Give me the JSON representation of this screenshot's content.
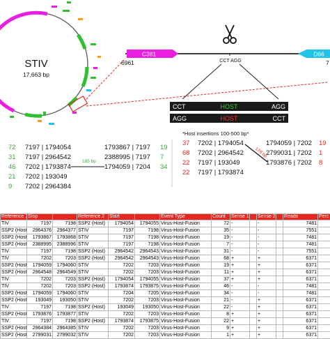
{
  "genome": {
    "name": "STIV",
    "size": "17,663 bp",
    "pos_label": "6961"
  },
  "genes": [
    {
      "label": "C381",
      "color": "#e91ee0"
    },
    {
      "label": "D66",
      "color": "#23c2e8"
    }
  ],
  "right_edge_label": "7",
  "cut_site": "CCT AGG",
  "junction_top": {
    "left": "CCT",
    "mid": "HOST",
    "right": "AGG",
    "mid_color": "#30d030"
  },
  "junction_bottom": {
    "left": "AGG",
    "mid": "HOST",
    "right": "CCT",
    "mid_color": "#ff3030"
  },
  "host_note": "*Host insertions 100-500 bp*",
  "left_counts": [
    {
      "count": "72",
      "coords": "7197 | 1794054",
      "color": "#3aa63a"
    },
    {
      "count": "31",
      "coords": "7197 | 2964542",
      "color": "#3aa63a"
    },
    {
      "count": "46",
      "coords": "7202 | 1793874",
      "color": "#3aa63a"
    },
    {
      "count": "21",
      "coords": "7202 | 193049",
      "color": "#3aa63a"
    },
    {
      "count": "9",
      "coords": "7202 | 2964384",
      "color": "#3aa63a"
    }
  ],
  "left_right_col": [
    {
      "coords": "1793867 | 7197",
      "count": "19"
    },
    {
      "coords": "2388995 | 7197",
      "count": "7"
    },
    {
      "coords": "1794059 | 7204",
      "count": "34"
    }
  ],
  "left_bp": "185 bp",
  "right_counts": [
    {
      "count": "37",
      "coords": "7202 | 1794054",
      "color": "#e8251e"
    },
    {
      "count": "68",
      "coords": "7202 | 2964542",
      "color": "#e8251e"
    },
    {
      "count": "22",
      "coords": "7197 | 193049",
      "color": "#e8251e"
    },
    {
      "count": "22",
      "coords": "7197 | 1793874",
      "color": "#e8251e"
    }
  ],
  "right_right_col": [
    {
      "coords": "1794059 | 7202",
      "count": "19"
    },
    {
      "coords": "2799031 | 7202",
      "count": "1"
    },
    {
      "coords": "1793876 | 7202",
      "count": "8"
    }
  ],
  "right_bp": "178 bp",
  "table": {
    "headers": [
      "Reference 1",
      "Stop",
      "",
      "Reference 2",
      "Start",
      "",
      "Event Type",
      "Count",
      "Sense 1",
      "",
      "Sense 2",
      "",
      "Reads",
      "Perc"
    ],
    "rows": [
      [
        "TIV",
        "7197",
        "7198",
        "SSP2 (Host)",
        "1794054",
        "1794055",
        "Virus-Host-Fusion",
        "72",
        "-",
        "",
        "-",
        "",
        "7481",
        ""
      ],
      [
        "SSP2 (Host)",
        "2964376",
        "2964377",
        "STIV",
        "7197",
        "7198",
        "Virus-Host-Fusion",
        "35",
        "-",
        "",
        "-",
        "",
        "7551",
        ""
      ],
      [
        "SSP2 (Host)",
        "1793867",
        "1793868",
        "STIV",
        "7197",
        "7198",
        "Virus-Host-Fusion",
        "19",
        "-",
        "",
        "-",
        "",
        "7481",
        ""
      ],
      [
        "SSP2 (Host)",
        "2388995",
        "2388996",
        "STIV",
        "7197",
        "7198",
        "Virus-Host-Fusion",
        "7",
        "-",
        "",
        "-",
        "",
        "7481",
        ""
      ],
      [
        "TIV",
        "7197",
        "7198",
        "SSP2 (Host)",
        "2964542",
        "2964543",
        "Virus-Host-Fusion",
        "31",
        "-",
        "",
        "-",
        "",
        "7551",
        ""
      ],
      [
        "TIV",
        "7202",
        "7203",
        "SSP2 (Host)",
        "2964542",
        "2964543",
        "Virus-Host-Fusion",
        "68",
        "+",
        "",
        "+",
        "",
        "6371",
        ""
      ],
      [
        "SSP2 (Host)",
        "1794059",
        "1794060",
        "STIV",
        "7202",
        "7203",
        "Virus-Host-Fusion",
        "19",
        "+",
        "",
        "+",
        "",
        "6371",
        ""
      ],
      [
        "SSP2 (Host)",
        "2964548",
        "2964549",
        "STIV",
        "7202",
        "7203",
        "Virus-Host-Fusion",
        "11",
        "+",
        "",
        "+",
        "",
        "6371",
        ""
      ],
      [
        "TIV",
        "7202",
        "7203",
        "SSP2 (Host)",
        "1794054",
        "1794055",
        "Virus-Host-Fusion",
        "37",
        "+",
        "",
        "+",
        "",
        "6371",
        ""
      ],
      [
        "TIV",
        "7202",
        "7203",
        "SSP2 (Host)",
        "1793874",
        "1793875",
        "Virus-Host-Fusion",
        "46",
        "-",
        "",
        "-",
        "",
        "7481",
        ""
      ],
      [
        "SSP2 (Host)",
        "1794059",
        "1794060",
        "STIV",
        "7204",
        "7205",
        "Virus-Host-Fusion",
        "34",
        "-",
        "",
        "-",
        "",
        "7481",
        ""
      ],
      [
        "SSP2 (Host)",
        "193049",
        "193050",
        "STIV",
        "7202",
        "7203",
        "Virus-Host-Fusion",
        "21",
        "-",
        "",
        "+",
        "",
        "6371",
        ""
      ],
      [
        "TIV",
        "7197",
        "7198",
        "SSP2 (Host)",
        "193049",
        "193050",
        "Virus-Host-Fusion",
        "22",
        "-",
        "",
        "+",
        "",
        "6371",
        ""
      ],
      [
        "SSP2 (Host)",
        "1793876",
        "1793877",
        "STIV",
        "7202",
        "7203",
        "Virus-Host-Fusion",
        "8",
        "+",
        "",
        "+",
        "",
        "6371",
        ""
      ],
      [
        "TIV",
        "7197",
        "7198",
        "SSP2 (Host)",
        "1793874",
        "1793875",
        "Virus-Host-Fusion",
        "22",
        "+",
        "",
        "+",
        "",
        "6371",
        ""
      ],
      [
        "SSP2 (Host)",
        "2964384",
        "2964385",
        "STIV",
        "7202",
        "7203",
        "Virus-Host-Fusion",
        "9",
        "+",
        "",
        "+",
        "",
        "6371",
        ""
      ],
      [
        "SSP2 (Host)",
        "2799031",
        "2799032",
        "STIV",
        "7202",
        "7203",
        "Virus-Host-Fusion",
        "1",
        "+",
        "",
        "+",
        "",
        "6371",
        ""
      ]
    ]
  },
  "colors": {
    "magenta": "#e91ee0",
    "green": "#2fc02f",
    "cyan": "#23c2e8",
    "orange": "#f59a23",
    "red": "#e8251e",
    "dark": "#1a1a1a"
  },
  "icons": [
    "scissors-icon"
  ]
}
